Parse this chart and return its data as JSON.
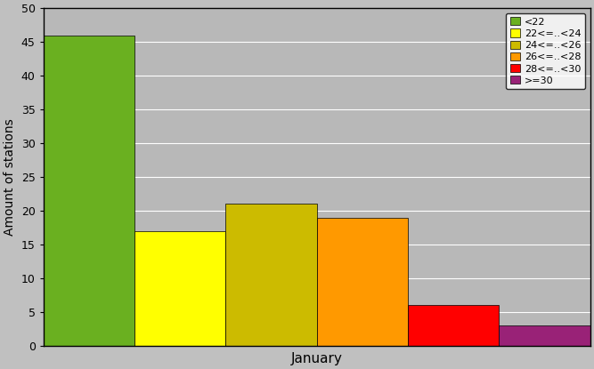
{
  "categories": [
    "<22",
    "22<=..<24",
    "24<=..<26",
    "26<=..<28",
    "28<=..<30",
    ">=30"
  ],
  "values": [
    46,
    17,
    21,
    19,
    6,
    3
  ],
  "colors": [
    "#6ab020",
    "#ffff00",
    "#ccbb00",
    "#ff9900",
    "#ff0000",
    "#992277"
  ],
  "xlabel": "January",
  "ylabel": "Amount of stations",
  "ylim": [
    0,
    50
  ],
  "yticks": [
    0,
    5,
    10,
    15,
    20,
    25,
    30,
    35,
    40,
    45,
    50
  ],
  "background_color": "#c0c0c0",
  "plot_bg_color": "#b8b8b8",
  "legend_labels": [
    "<22",
    "22<=..<24",
    "24<=..<26",
    "26<=..<28",
    "28<=..<30",
    ">=30"
  ],
  "bar_width": 1.0,
  "figsize": [
    6.67,
    4.15
  ],
  "dpi": 100
}
